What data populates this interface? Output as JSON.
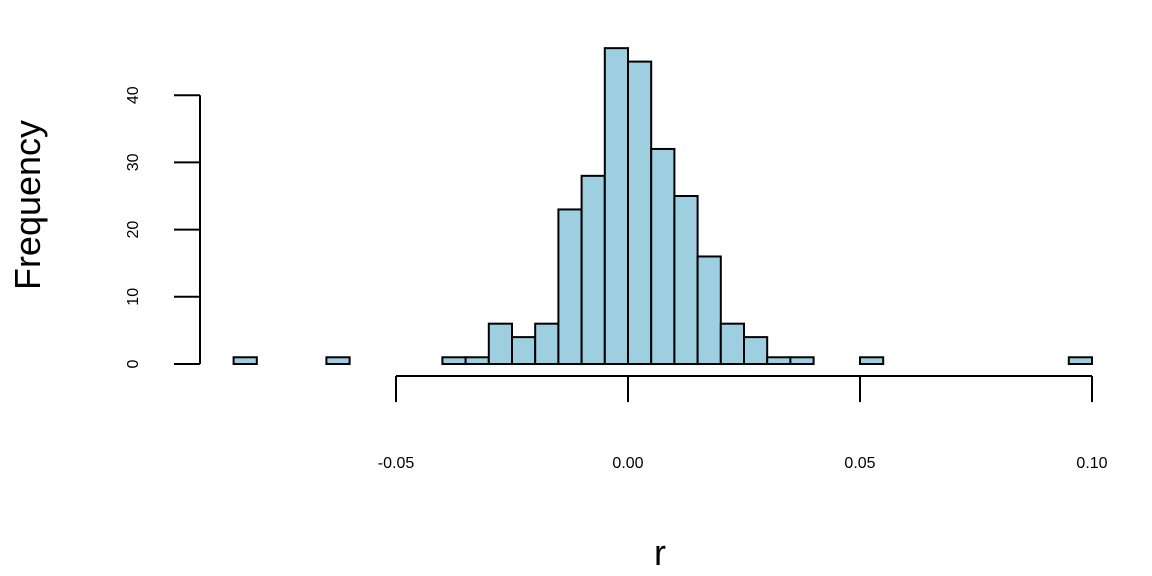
{
  "chart_data": {
    "type": "bar",
    "title": "",
    "xlabel": "r",
    "ylabel": "Frequency",
    "bin_width": 0.005,
    "bins": [
      {
        "x0": -0.085,
        "x1": -0.08,
        "count": 1
      },
      {
        "x0": -0.08,
        "x1": -0.075,
        "count": 0
      },
      {
        "x0": -0.075,
        "x1": -0.07,
        "count": 0
      },
      {
        "x0": -0.07,
        "x1": -0.065,
        "count": 0
      },
      {
        "x0": -0.065,
        "x1": -0.06,
        "count": 1
      },
      {
        "x0": -0.06,
        "x1": -0.055,
        "count": 0
      },
      {
        "x0": -0.055,
        "x1": -0.05,
        "count": 0
      },
      {
        "x0": -0.05,
        "x1": -0.045,
        "count": 0
      },
      {
        "x0": -0.045,
        "x1": -0.04,
        "count": 0
      },
      {
        "x0": -0.04,
        "x1": -0.035,
        "count": 1
      },
      {
        "x0": -0.035,
        "x1": -0.03,
        "count": 1
      },
      {
        "x0": -0.03,
        "x1": -0.025,
        "count": 6
      },
      {
        "x0": -0.025,
        "x1": -0.02,
        "count": 4
      },
      {
        "x0": -0.02,
        "x1": -0.015,
        "count": 6
      },
      {
        "x0": -0.015,
        "x1": -0.01,
        "count": 23
      },
      {
        "x0": -0.01,
        "x1": -0.005,
        "count": 28
      },
      {
        "x0": -0.005,
        "x1": 0.0,
        "count": 47
      },
      {
        "x0": 0.0,
        "x1": 0.005,
        "count": 45
      },
      {
        "x0": 0.005,
        "x1": 0.01,
        "count": 32
      },
      {
        "x0": 0.01,
        "x1": 0.015,
        "count": 25
      },
      {
        "x0": 0.015,
        "x1": 0.02,
        "count": 16
      },
      {
        "x0": 0.02,
        "x1": 0.025,
        "count": 6
      },
      {
        "x0": 0.025,
        "x1": 0.03,
        "count": 4
      },
      {
        "x0": 0.03,
        "x1": 0.035,
        "count": 1
      },
      {
        "x0": 0.035,
        "x1": 0.04,
        "count": 1
      },
      {
        "x0": 0.04,
        "x1": 0.045,
        "count": 0
      },
      {
        "x0": 0.045,
        "x1": 0.05,
        "count": 0
      },
      {
        "x0": 0.05,
        "x1": 0.055,
        "count": 1
      },
      {
        "x0": 0.055,
        "x1": 0.06,
        "count": 0
      },
      {
        "x0": 0.06,
        "x1": 0.065,
        "count": 0
      },
      {
        "x0": 0.065,
        "x1": 0.07,
        "count": 0
      },
      {
        "x0": 0.07,
        "x1": 0.075,
        "count": 0
      },
      {
        "x0": 0.075,
        "x1": 0.08,
        "count": 0
      },
      {
        "x0": 0.08,
        "x1": 0.085,
        "count": 0
      },
      {
        "x0": 0.085,
        "x1": 0.09,
        "count": 0
      },
      {
        "x0": 0.09,
        "x1": 0.095,
        "count": 0
      },
      {
        "x0": 0.095,
        "x1": 0.1,
        "count": 1
      }
    ],
    "xlim": [
      -0.085,
      0.1
    ],
    "ylim": [
      0,
      47
    ],
    "x_ticks": [
      -0.05,
      0.0,
      0.05,
      0.1
    ],
    "x_tick_labels": [
      "-0.05",
      "0.00",
      "0.05",
      "0.10"
    ],
    "y_ticks": [
      0,
      10,
      20,
      30,
      40
    ],
    "y_tick_labels": [
      "0",
      "10",
      "20",
      "30",
      "40"
    ],
    "grid": false,
    "legend": "none",
    "bar_color": "#9ecfe0",
    "edge_color": "#000000"
  }
}
